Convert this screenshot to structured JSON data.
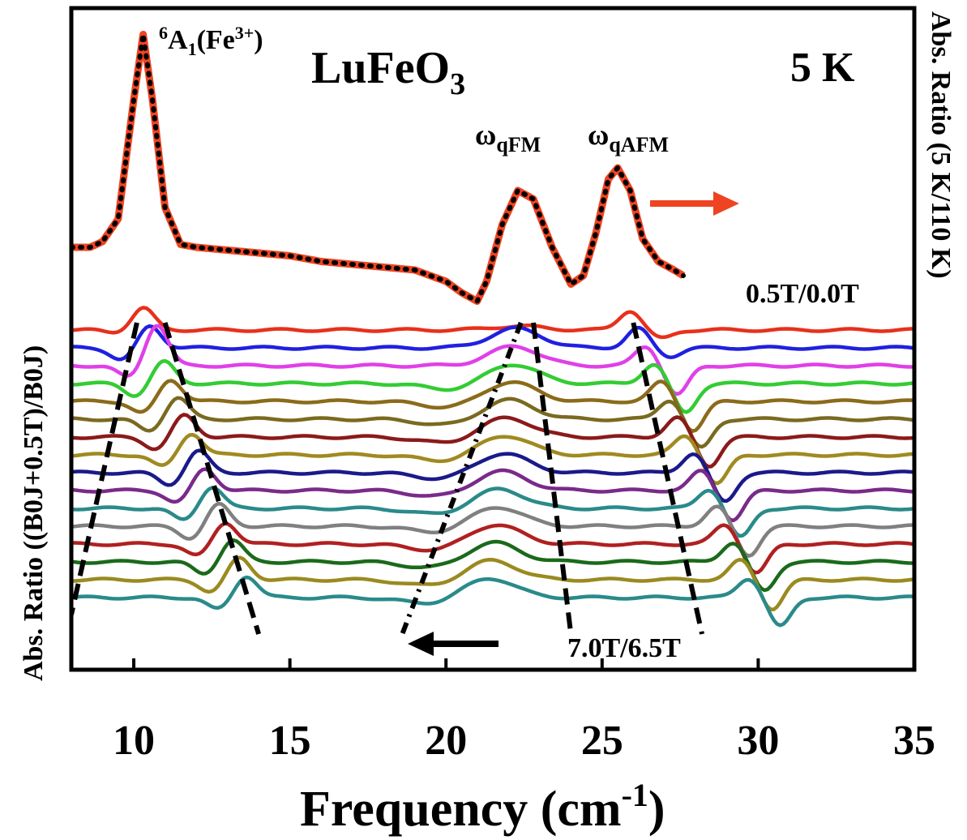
{
  "chart_data": {
    "type": "line",
    "title": "LuFeO",
    "title_subscript": "3",
    "temperature_label": "5 K",
    "xlabel": "Frequency (cm",
    "xlabel_superscript": "-1",
    "xlabel_suffix": ")",
    "ylabel_left": "Abs. Ratio ((B",
    "ylabel_left_full": "Abs. Ratio ((B0J+0.5T)/B0J)",
    "ylabel_right": "Abs. Ratio (5 K/110 K)",
    "xlim": [
      8,
      35
    ],
    "x_ticks": [
      "10",
      "15",
      "20",
      "25",
      "30",
      "35"
    ],
    "x_tick_values": [
      10,
      15,
      20,
      25,
      30,
      35
    ],
    "grid": false,
    "annotations": {
      "peak_a1_sup": "6",
      "peak_a1_main": "A",
      "peak_a1_sub": "1",
      "peak_a1_tail": "(Fe",
      "peak_a1_charge": "3+",
      "peak_a1_close": ")",
      "peak_qfm": "ω",
      "peak_qfm_sub": "qFM",
      "peak_qafm": "ω",
      "peak_qafm_sub": "qAFM",
      "field_top": "0.5T/0.0T",
      "field_bottom": "7.0T/6.5T"
    },
    "top_spectrum": {
      "x": [
        8,
        8.6,
        9,
        9.5,
        10.0,
        10.3,
        10.6,
        11.0,
        11.5,
        12,
        13,
        14,
        15,
        16,
        17,
        18,
        19,
        20,
        20.5,
        21.0,
        21.3,
        21.8,
        22.3,
        22.8,
        23.4,
        24.0,
        24.4,
        24.8,
        25.2,
        25.5,
        25.9,
        26.3,
        26.8,
        27.3,
        27.6
      ],
      "y": [
        0.2,
        0.2,
        0.22,
        0.3,
        0.72,
        0.95,
        0.72,
        0.34,
        0.21,
        0.2,
        0.19,
        0.18,
        0.17,
        0.15,
        0.14,
        0.13,
        0.12,
        0.08,
        0.04,
        0.01,
        0.08,
        0.28,
        0.4,
        0.37,
        0.2,
        0.07,
        0.1,
        0.25,
        0.44,
        0.48,
        0.4,
        0.23,
        0.15,
        0.12,
        0.1
      ],
      "fit_color": "#000000",
      "data_color": "#ee4422"
    },
    "series": [
      {
        "color": "#e8301c",
        "offset": 0
      },
      {
        "color": "#2020e0",
        "offset": 1
      },
      {
        "color": "#e040e8",
        "offset": 2
      },
      {
        "color": "#33cc33",
        "offset": 3
      },
      {
        "color": "#8b6b1a",
        "offset": 4
      },
      {
        "color": "#7a6a20",
        "offset": 5
      },
      {
        "color": "#8b1a1a",
        "offset": 6
      },
      {
        "color": "#a08a20",
        "offset": 7
      },
      {
        "color": "#1a1a8b",
        "offset": 8
      },
      {
        "color": "#7a2a8a",
        "offset": 9
      },
      {
        "color": "#2a8a8a",
        "offset": 10
      },
      {
        "color": "#808080",
        "offset": 11
      },
      {
        "color": "#b02020",
        "offset": 12
      },
      {
        "color": "#1a6a1a",
        "offset": 13
      },
      {
        "color": "#9a8a20",
        "offset": 14
      },
      {
        "color": "#2a8a8a",
        "offset": 15
      }
    ],
    "guide_lines": [
      {
        "style": "dashed",
        "x": [
          10.1,
          8.0
        ],
        "row": [
          0,
          15
        ]
      },
      {
        "style": "dashed",
        "x": [
          11.0,
          14.0
        ],
        "row": [
          0,
          16
        ]
      },
      {
        "style": "dash-dot",
        "x": [
          22.4,
          18.6
        ],
        "row": [
          0,
          16
        ]
      },
      {
        "style": "dashed",
        "x": [
          22.8,
          24.0
        ],
        "row": [
          0,
          16
        ]
      },
      {
        "style": "dashed",
        "x": [
          26.0,
          28.2
        ],
        "row": [
          0,
          16
        ]
      }
    ],
    "arrows": [
      {
        "direction": "right",
        "color": "#ee4422"
      },
      {
        "direction": "left",
        "color": "#000000"
      }
    ]
  }
}
